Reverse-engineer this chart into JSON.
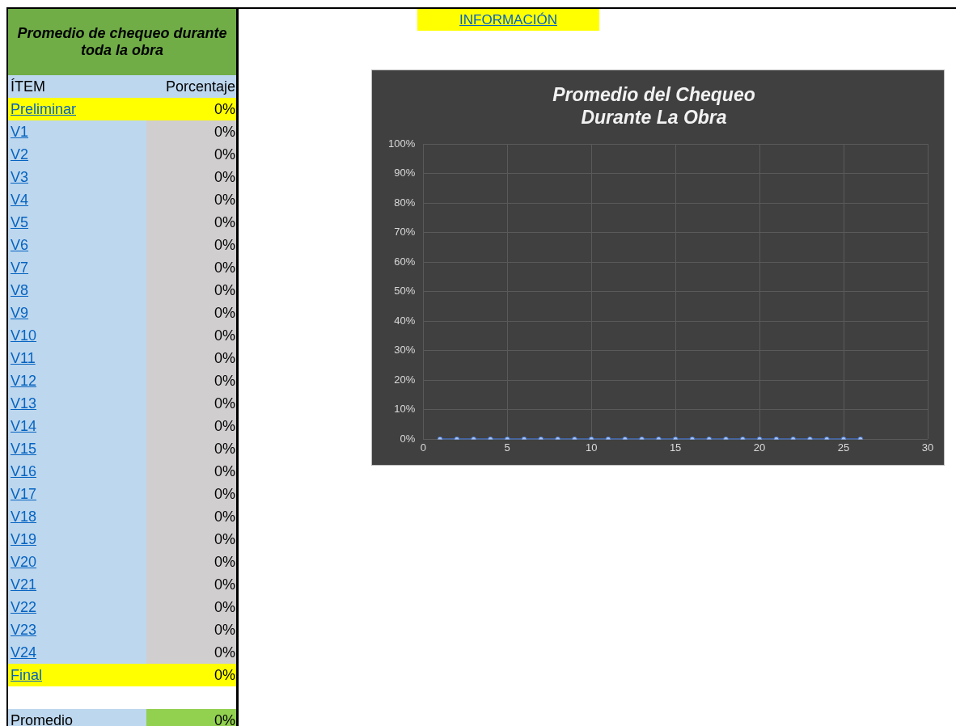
{
  "chart_data": [
    {
      "type": "other",
      "title": "Promedio de chequeo durante toda la obra",
      "categories": [
        "Preliminar",
        "V1",
        "V2",
        "V3",
        "V4",
        "V5",
        "V6",
        "V7",
        "V8",
        "V9",
        "V10",
        "V11",
        "V12",
        "V13",
        "V14",
        "V15",
        "V16",
        "V17",
        "V18",
        "V19",
        "V20",
        "V21",
        "V22",
        "V23",
        "V24",
        "Final"
      ],
      "value_labels": [
        "0%",
        "0%",
        "0%",
        "0%",
        "0%",
        "0%",
        "0%",
        "0%",
        "0%",
        "0%",
        "0%",
        "0%",
        "0%",
        "0%",
        "0%",
        "0%",
        "0%",
        "0%",
        "0%",
        "0%",
        "0%",
        "0%",
        "0%",
        "0%",
        "0%",
        "0%"
      ],
      "annotations": [
        "ÍTEM",
        "Porcentaje",
        "Promedio",
        "0%"
      ]
    },
    {
      "type": "line",
      "title": "Promedio del Chequeo\nDurante La Obra",
      "annotations": [
        "INFORMACIÓN"
      ],
      "x": [
        1,
        2,
        3,
        4,
        5,
        6,
        7,
        8,
        9,
        10,
        11,
        12,
        13,
        14,
        15,
        16,
        17,
        18,
        19,
        20,
        21,
        22,
        23,
        24,
        25,
        26
      ],
      "series": [
        {
          "color": "#4472c4",
          "values": [
            0,
            0,
            0,
            0,
            0,
            0,
            0,
            0,
            0,
            0,
            0,
            0,
            0,
            0,
            0,
            0,
            0,
            0,
            0,
            0,
            0,
            0,
            0,
            0,
            0,
            0
          ]
        }
      ],
      "xlim": [
        0,
        30
      ],
      "xticks": [
        0,
        5,
        10,
        15,
        20,
        25,
        30
      ],
      "ylim": [
        0,
        100
      ],
      "yticks": [
        {
          "value": 0,
          "label": "0%"
        },
        {
          "value": 10,
          "label": "10%"
        },
        {
          "value": 20,
          "label": "20%"
        },
        {
          "value": 30,
          "label": "30%"
        },
        {
          "value": 40,
          "label": "40%"
        },
        {
          "value": 50,
          "label": "50%"
        },
        {
          "value": 60,
          "label": "60%"
        },
        {
          "value": 70,
          "label": "70%"
        },
        {
          "value": 80,
          "label": "80%"
        },
        {
          "value": 90,
          "label": "90%"
        },
        {
          "value": 100,
          "label": "100%"
        }
      ],
      "grid": true,
      "legend": false,
      "marker": "circle"
    }
  ]
}
